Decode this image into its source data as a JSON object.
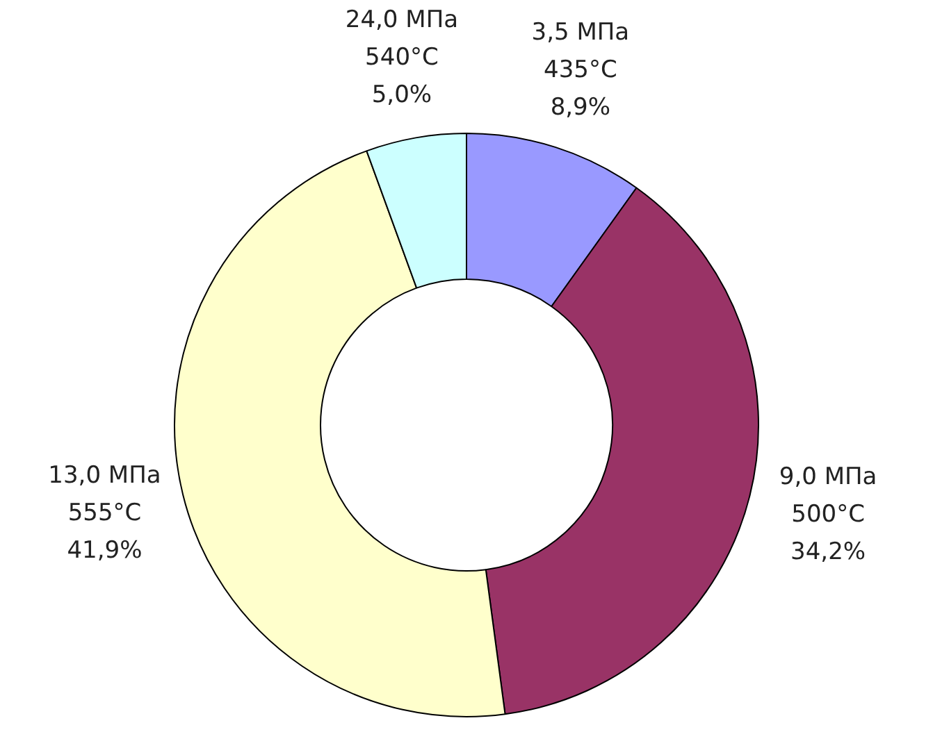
{
  "chart_data": {
    "type": "donut",
    "categories": [
      "3,5 МПа\n435°C",
      "9,0 МПа\n500°C",
      "13,0 МПа\n555°C",
      "24,0 МПа\n540°C"
    ],
    "values": [
      8.9,
      34.2,
      41.9,
      5.0
    ],
    "value_labels": [
      "8,9%",
      "34,2%",
      "41,9%",
      "5,0%"
    ],
    "colors": [
      "#9999ff",
      "#993366",
      "#ffffcc",
      "#ccffff"
    ],
    "legend": false
  }
}
